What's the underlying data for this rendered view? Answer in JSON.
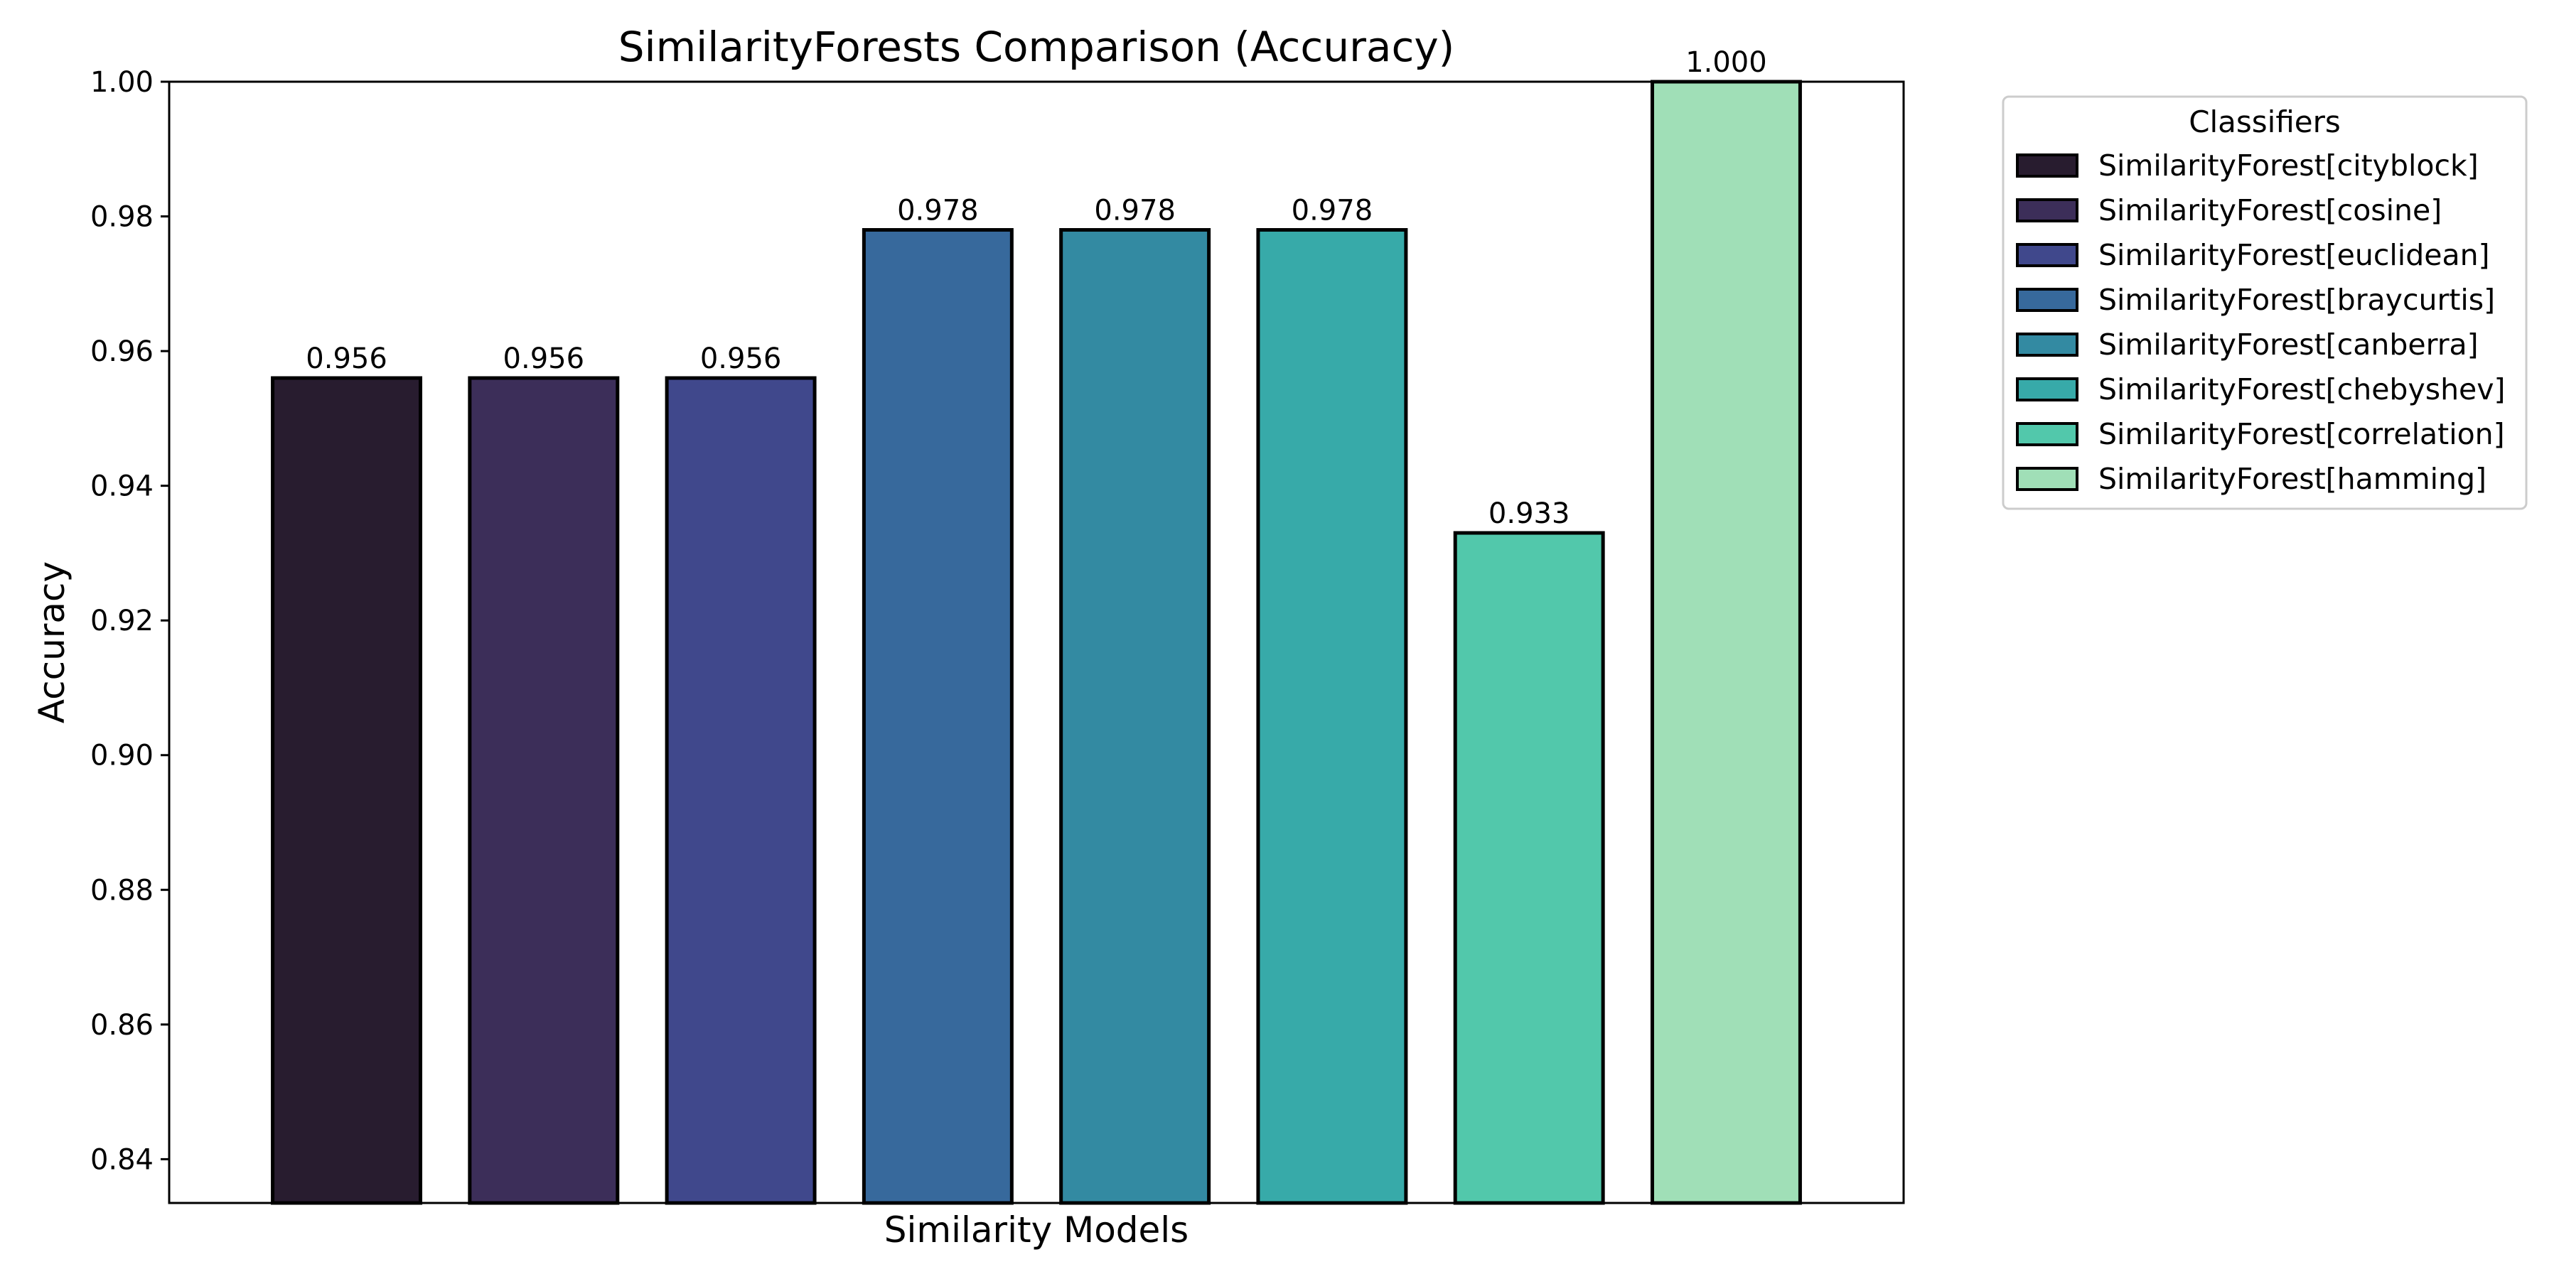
{
  "chart_data": {
    "type": "bar",
    "title": "SimilarityForests Comparison (Accuracy)",
    "xlabel": "Similarity Models",
    "ylabel": "Accuracy",
    "ylim": [
      0.8335,
      1.0
    ],
    "yticks": [
      "0.84",
      "0.86",
      "0.88",
      "0.90",
      "0.92",
      "0.94",
      "0.96",
      "0.98",
      "1.00"
    ],
    "grid": false,
    "legend": {
      "title": "Classifiers",
      "placement": "outside-top-right"
    },
    "series": [
      {
        "name": "SimilarityForest[cityblock]",
        "value": 0.956,
        "label": "0.956",
        "color": "#281c2f"
      },
      {
        "name": "SimilarityForest[cosine]",
        "value": 0.956,
        "label": "0.956",
        "color": "#3c2e59"
      },
      {
        "name": "SimilarityForest[euclidean]",
        "value": 0.956,
        "label": "0.956",
        "color": "#40488c"
      },
      {
        "name": "SimilarityForest[braycurtis]",
        "value": 0.978,
        "label": "0.978",
        "color": "#37699c"
      },
      {
        "name": "SimilarityForest[canberra]",
        "value": 0.978,
        "label": "0.978",
        "color": "#338aa2"
      },
      {
        "name": "SimilarityForest[chebyshev]",
        "value": 0.978,
        "label": "0.978",
        "color": "#37aaa9"
      },
      {
        "name": "SimilarityForest[correlation]",
        "value": 0.933,
        "label": "0.933",
        "color": "#52c8ab"
      },
      {
        "name": "SimilarityForest[hamming]",
        "value": 1.0,
        "label": "1.000",
        "color": "#a0dfb7"
      }
    ]
  }
}
